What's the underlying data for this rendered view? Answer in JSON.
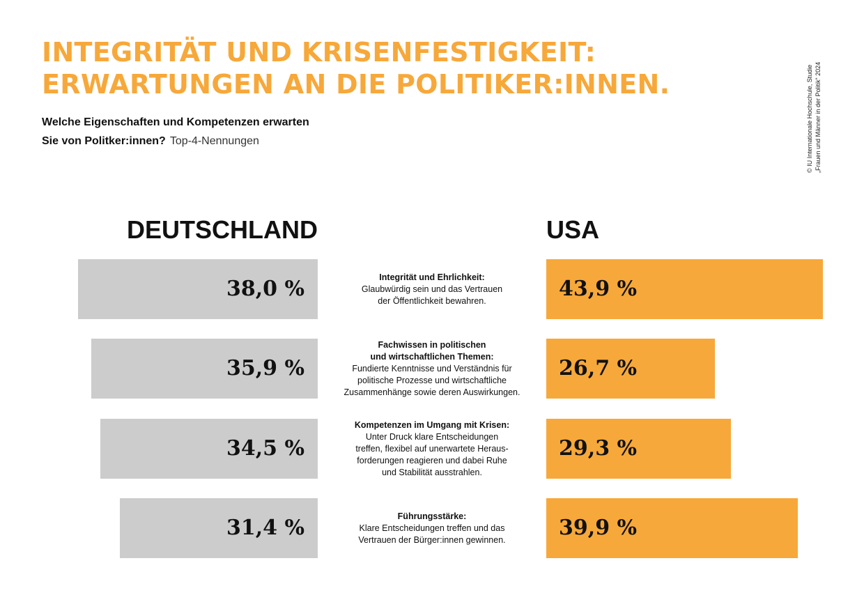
{
  "title_lines": [
    "INTEGRITÄT UND KRISENFESTIGKEIT:",
    "ERWARTUNGEN AN DIE POLITIKER:INNEN."
  ],
  "subtitle": {
    "line1": "Welche Eigenschaften und Kompetenzen erwarten",
    "line2": "Sie von Politker:innen?",
    "note": "Top-4-Nennungen"
  },
  "source_lines": [
    "© IU Internationale Hochschule, Studie",
    "„Frauen und Männer in der Politik“ 2024"
  ],
  "colors": {
    "accent": "#F7A83A",
    "germany_bar": "#CCCCCC",
    "text": "#111111"
  },
  "chart_data": {
    "type": "bar",
    "orientation": "horizontal-butterfly",
    "series": [
      {
        "name": "DEUTSCHLAND",
        "values": [
          38.0,
          35.9,
          34.5,
          31.4
        ],
        "labels": [
          "38,0 %",
          "35,9 %",
          "34,5 %",
          "31,4 %"
        ]
      },
      {
        "name": "USA",
        "values": [
          43.9,
          26.7,
          29.3,
          39.9
        ],
        "labels": [
          "43,9 %",
          "26,7 %",
          "29,3 %",
          "39,9 %"
        ]
      }
    ],
    "categories": [
      {
        "heading": [
          "Integrität und Ehrlichkeit:"
        ],
        "text": [
          "Glaubwürdig sein und das Vertrauen",
          "der Öffentlichkeit bewahren."
        ]
      },
      {
        "heading": [
          "Fachwissen in politischen",
          "und wirtschaftlichen Themen:"
        ],
        "text": [
          "Fundierte Kenntnisse und Verständnis für",
          "politische Prozesse und wirtschaftliche",
          "Zusammenhänge sowie deren Auswirkungen."
        ]
      },
      {
        "heading": [
          "Kompetenzen im Umgang mit Krisen:"
        ],
        "text": [
          "Unter Druck klare Entscheidungen",
          "treffen, flexibel auf unerwartete Heraus-",
          "forderungen reagieren und dabei Ruhe",
          "und Stabilität ausstrahlen."
        ]
      },
      {
        "heading": [
          "Führungsstärke:"
        ],
        "text": [
          "Klare Entscheidungen treffen und das",
          "Vertrauen der Bürger:innen gewinnen."
        ]
      }
    ],
    "unit": "%"
  }
}
